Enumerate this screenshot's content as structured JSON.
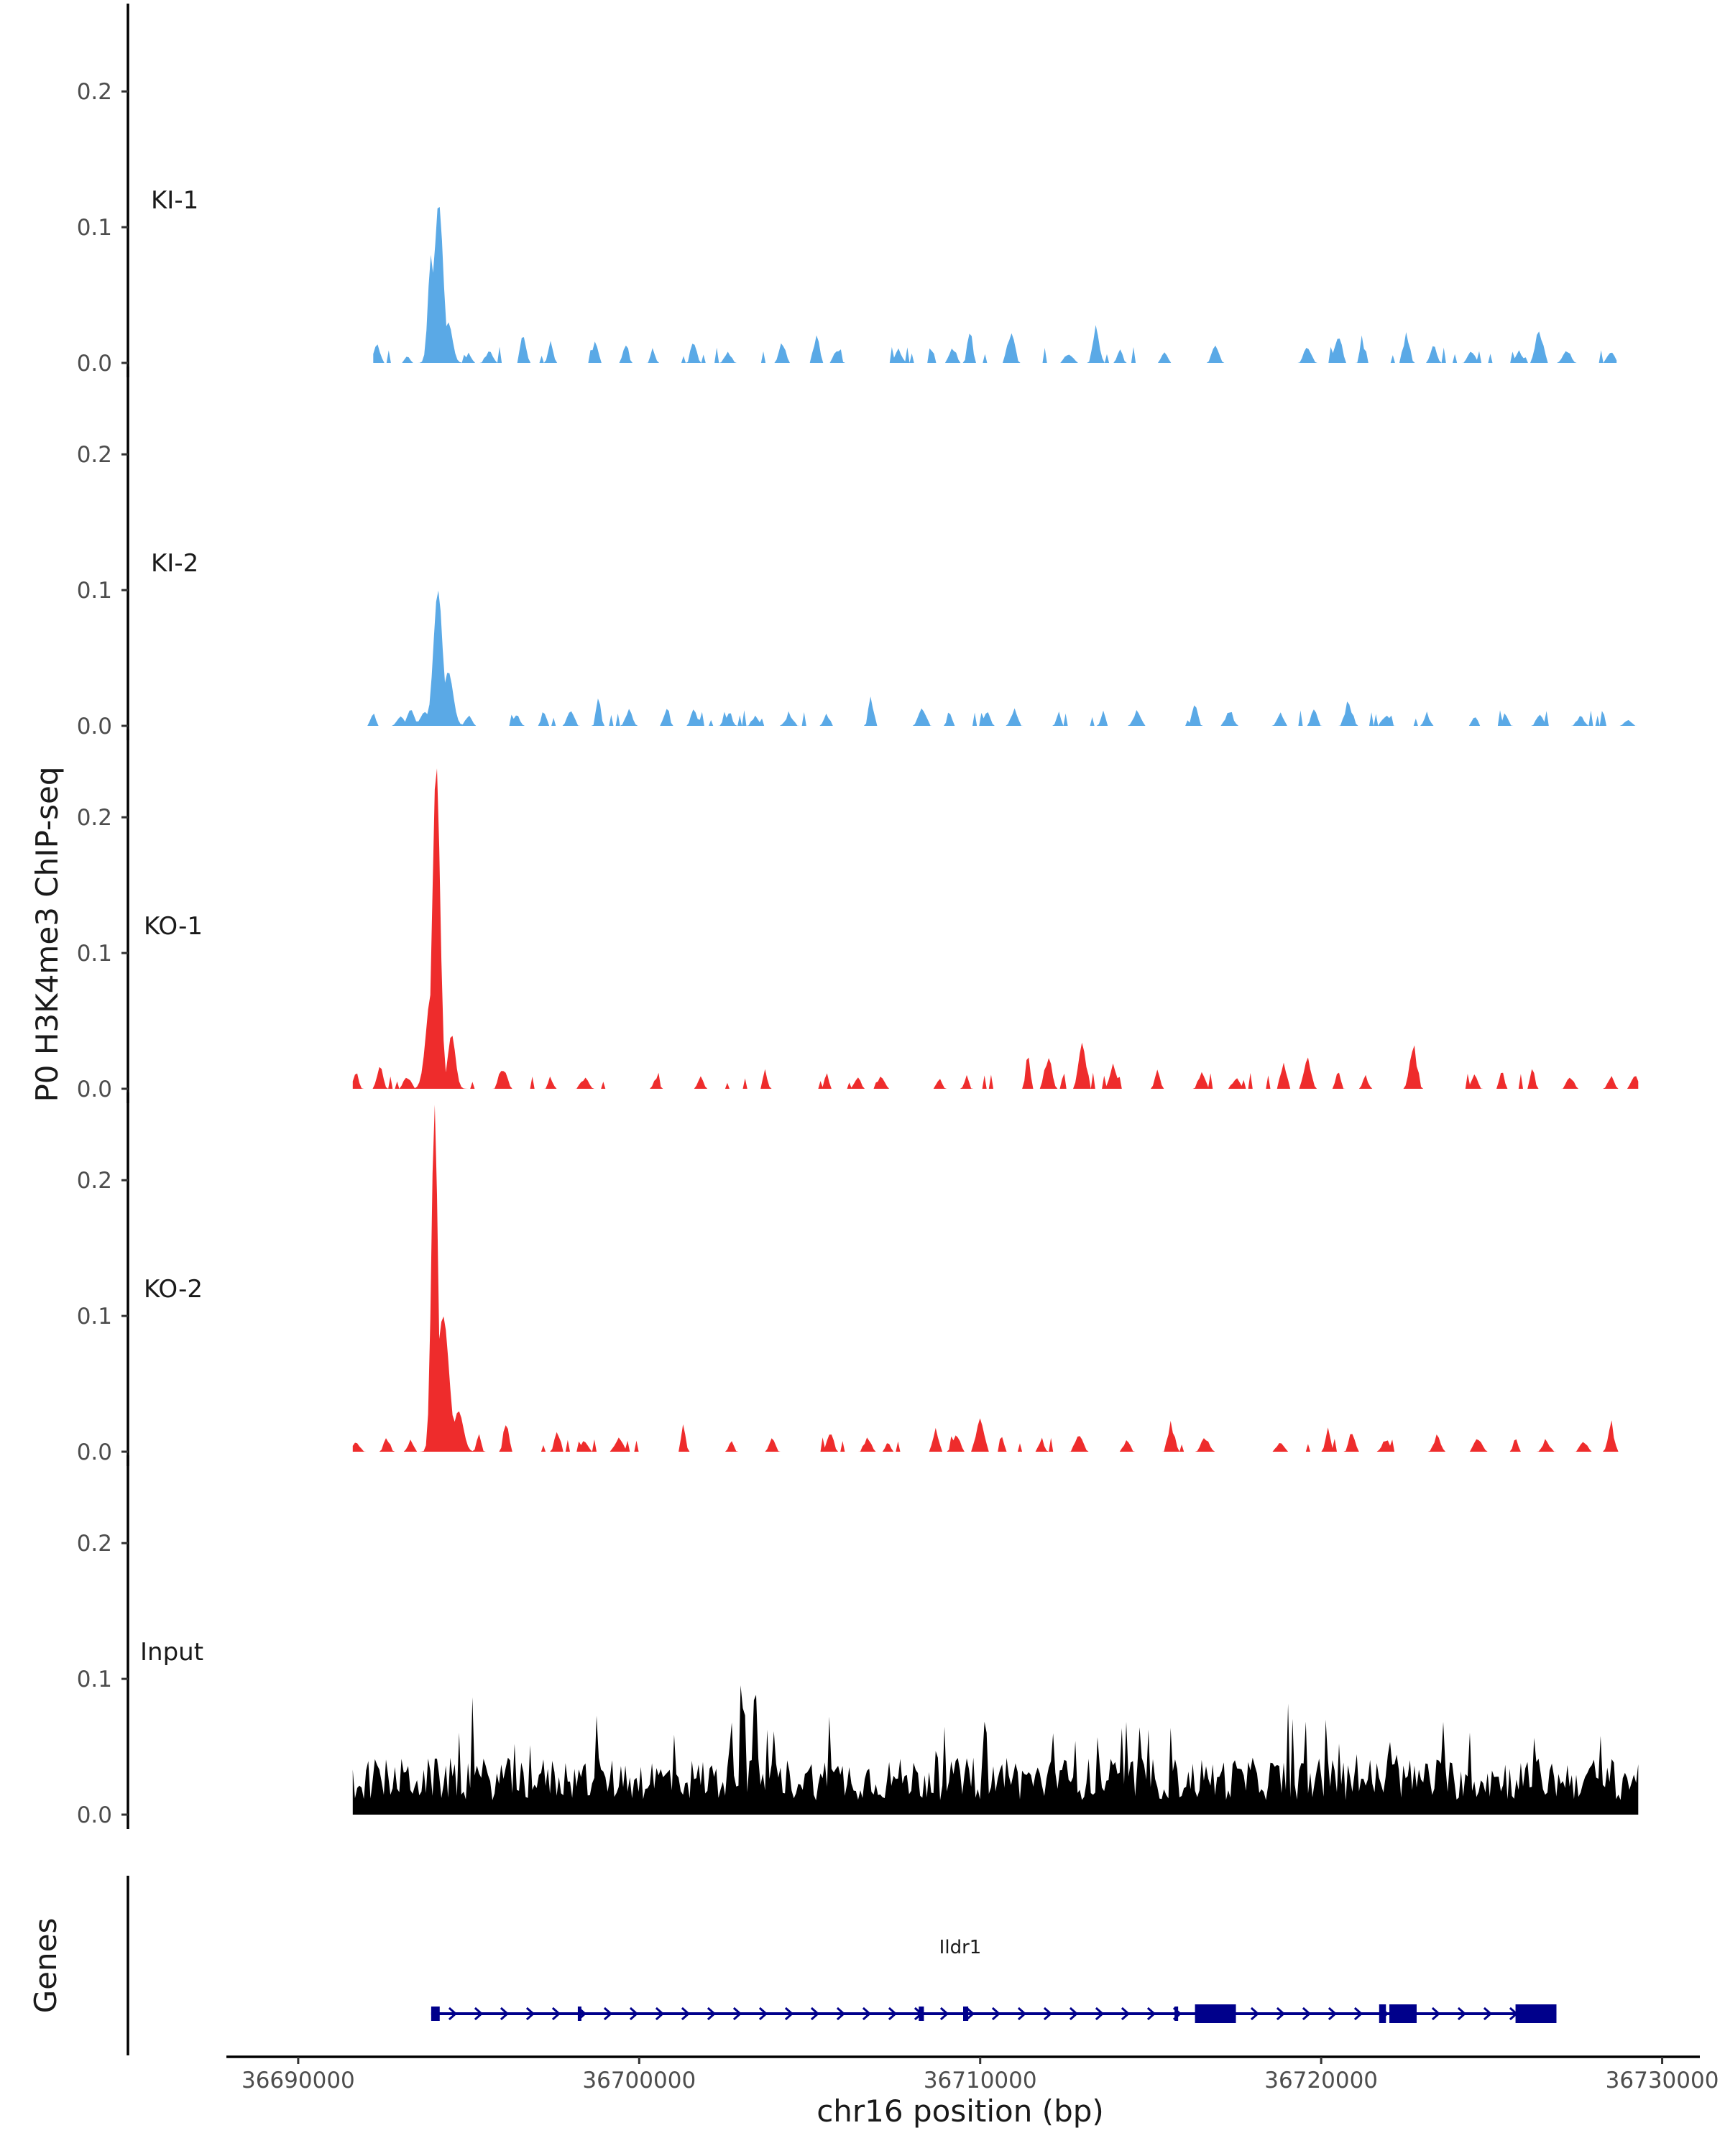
{
  "chart_data": {
    "type": "area",
    "title": "",
    "ylabel": "P0 H3K4me3 ChIP-seq",
    "xlabel": "chr16 position (bp)",
    "xlim": [
      36688000,
      36731000
    ],
    "x_ticks": [
      36690000,
      36700000,
      36710000,
      36720000,
      36730000
    ],
    "x_tick_labels": [
      "36690000",
      "36700000",
      "36710000",
      "36720000",
      "36730000"
    ],
    "ylim": [
      0,
      0.27
    ],
    "y_ticks": [
      0.0,
      0.1,
      0.2
    ],
    "y_tick_labels": [
      "0.0",
      "0.1",
      "0.2"
    ],
    "tracks": [
      {
        "name": "KI-1",
        "color": "#5aa9e6",
        "peaks": [
          [
            36694120,
            0.118,
            130
          ],
          [
            36693900,
            0.08,
            90
          ],
          [
            36694400,
            0.03,
            120
          ]
        ],
        "noise": [
          [
            36692300,
            0.016
          ],
          [
            36693200,
            0.006
          ],
          [
            36695000,
            0.009
          ],
          [
            36695600,
            0.011
          ],
          [
            36696600,
            0.026
          ],
          [
            36697400,
            0.02
          ],
          [
            36698700,
            0.019
          ],
          [
            36699600,
            0.015
          ],
          [
            36700400,
            0.013
          ],
          [
            36701600,
            0.022
          ],
          [
            36702600,
            0.01
          ],
          [
            36704200,
            0.02
          ],
          [
            36705200,
            0.024
          ],
          [
            36705800,
            0.013
          ],
          [
            36707600,
            0.011
          ],
          [
            36709200,
            0.014
          ],
          [
            36709700,
            0.03
          ],
          [
            36710900,
            0.03
          ],
          [
            36712600,
            0.009
          ],
          [
            36713400,
            0.03
          ],
          [
            36714100,
            0.013
          ],
          [
            36715400,
            0.011
          ],
          [
            36716900,
            0.016
          ],
          [
            36719600,
            0.016
          ],
          [
            36720500,
            0.026
          ],
          [
            36721200,
            0.022
          ],
          [
            36722500,
            0.026
          ],
          [
            36723300,
            0.016
          ],
          [
            36724400,
            0.011
          ],
          [
            36725800,
            0.011
          ],
          [
            36726400,
            0.031
          ],
          [
            36727200,
            0.012
          ],
          [
            36728500,
            0.01
          ]
        ],
        "span": [
          36692200,
          36728700
        ]
      },
      {
        "name": "KI-2",
        "color": "#5aa9e6",
        "peaks": [
          [
            36694100,
            0.1,
            130
          ],
          [
            36694400,
            0.04,
            140
          ],
          [
            36693300,
            0.012,
            100
          ]
        ],
        "noise": [
          [
            36692200,
            0.012
          ],
          [
            36693000,
            0.01
          ],
          [
            36693700,
            0.015
          ],
          [
            36695000,
            0.009
          ],
          [
            36696400,
            0.01
          ],
          [
            36697200,
            0.014
          ],
          [
            36698000,
            0.016
          ],
          [
            36698800,
            0.027
          ],
          [
            36699700,
            0.016
          ],
          [
            36700800,
            0.018
          ],
          [
            36701600,
            0.014
          ],
          [
            36702600,
            0.01
          ],
          [
            36703400,
            0.009
          ],
          [
            36704400,
            0.009
          ],
          [
            36705500,
            0.011
          ],
          [
            36706800,
            0.027
          ],
          [
            36708300,
            0.016
          ],
          [
            36709100,
            0.014
          ],
          [
            36710200,
            0.013
          ],
          [
            36711000,
            0.014
          ],
          [
            36712300,
            0.012
          ],
          [
            36713600,
            0.014
          ],
          [
            36714600,
            0.013
          ],
          [
            36716300,
            0.02
          ],
          [
            36717300,
            0.012
          ],
          [
            36718800,
            0.011
          ],
          [
            36719800,
            0.017
          ],
          [
            36720800,
            0.022
          ],
          [
            36721900,
            0.01
          ],
          [
            36723100,
            0.009
          ],
          [
            36724500,
            0.01
          ],
          [
            36725400,
            0.011
          ],
          [
            36726400,
            0.012
          ],
          [
            36727600,
            0.009
          ],
          [
            36729000,
            0.006
          ]
        ],
        "span": [
          36691900,
          36729300
        ]
      },
      {
        "name": "KO-1",
        "color": "#ee2c2c",
        "peaks": [
          [
            36694050,
            0.24,
            110
          ],
          [
            36693900,
            0.07,
            150
          ],
          [
            36694500,
            0.04,
            110
          ]
        ],
        "noise": [
          [
            36691700,
            0.014
          ],
          [
            36692400,
            0.021
          ],
          [
            36693200,
            0.011
          ],
          [
            36696000,
            0.02
          ],
          [
            36697400,
            0.011
          ],
          [
            36698400,
            0.01
          ],
          [
            36700500,
            0.009
          ],
          [
            36701800,
            0.011
          ],
          [
            36703700,
            0.017
          ],
          [
            36705500,
            0.014
          ],
          [
            36706400,
            0.011
          ],
          [
            36707100,
            0.011
          ],
          [
            36708800,
            0.01
          ],
          [
            36709600,
            0.012
          ],
          [
            36711400,
            0.036
          ],
          [
            36712000,
            0.03
          ],
          [
            36713000,
            0.039
          ],
          [
            36713900,
            0.02
          ],
          [
            36715200,
            0.015
          ],
          [
            36716500,
            0.015
          ],
          [
            36717500,
            0.01
          ],
          [
            36718900,
            0.025
          ],
          [
            36719600,
            0.026
          ],
          [
            36720500,
            0.015
          ],
          [
            36721300,
            0.011
          ],
          [
            36722700,
            0.039
          ],
          [
            36724500,
            0.012
          ],
          [
            36725300,
            0.019
          ],
          [
            36726200,
            0.021
          ],
          [
            36727300,
            0.012
          ],
          [
            36728500,
            0.011
          ],
          [
            36729200,
            0.014
          ]
        ],
        "span": [
          36691600,
          36729300
        ]
      },
      {
        "name": "KO-2",
        "color": "#ee2c2c",
        "peaks": [
          [
            36694000,
            0.256,
            90
          ],
          [
            36694250,
            0.1,
            170
          ],
          [
            36694700,
            0.03,
            140
          ]
        ],
        "noise": [
          [
            36691700,
            0.008
          ],
          [
            36692600,
            0.013
          ],
          [
            36693300,
            0.01
          ],
          [
            36695300,
            0.015
          ],
          [
            36696100,
            0.03
          ],
          [
            36697600,
            0.02
          ],
          [
            36698400,
            0.01
          ],
          [
            36699400,
            0.012
          ],
          [
            36701300,
            0.024
          ],
          [
            36702700,
            0.009
          ],
          [
            36703900,
            0.011
          ],
          [
            36705600,
            0.018
          ],
          [
            36706700,
            0.013
          ],
          [
            36707300,
            0.009
          ],
          [
            36708700,
            0.02
          ],
          [
            36709300,
            0.016
          ],
          [
            36710000,
            0.03
          ],
          [
            36711800,
            0.012
          ],
          [
            36712900,
            0.015
          ],
          [
            36714300,
            0.011
          ],
          [
            36715600,
            0.025
          ],
          [
            36716600,
            0.013
          ],
          [
            36718800,
            0.009
          ],
          [
            36720200,
            0.022
          ],
          [
            36720900,
            0.02
          ],
          [
            36721900,
            0.011
          ],
          [
            36723400,
            0.014
          ],
          [
            36724600,
            0.012
          ],
          [
            36725700,
            0.012
          ],
          [
            36726600,
            0.009
          ],
          [
            36727700,
            0.009
          ],
          [
            36728500,
            0.026
          ]
        ],
        "span": [
          36691600,
          36729000
        ]
      },
      {
        "name": "Input",
        "color": "#000000",
        "peaks": [
          [
            36703000,
            0.108,
            50
          ],
          [
            36703400,
            0.1,
            60
          ],
          [
            36702700,
            0.07,
            60
          ]
        ],
        "noise_level": 0.035,
        "span": [
          36691600,
          36729300
        ]
      }
    ],
    "genes_track": {
      "label": "Genes",
      "gene": "Ildr1",
      "strand": "+",
      "color": "#00008b",
      "start": 36693900,
      "end": 36726900,
      "exons": [
        [
          36693900,
          36694150,
          "utr"
        ],
        [
          36698200,
          36698300,
          "utr"
        ],
        [
          36708200,
          36708350,
          "utr"
        ],
        [
          36709500,
          36709650,
          "utr"
        ],
        [
          36715700,
          36715800,
          "utr"
        ],
        [
          36716300,
          36717500,
          "cds"
        ],
        [
          36721700,
          36721900,
          "cds"
        ],
        [
          36722000,
          36722800,
          "cds"
        ],
        [
          36725700,
          36726900,
          "cds"
        ]
      ]
    }
  }
}
